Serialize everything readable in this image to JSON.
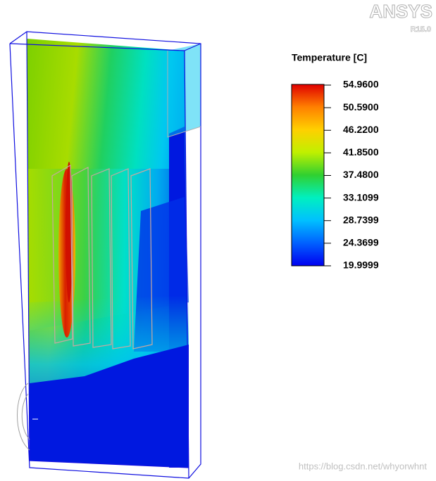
{
  "brand": {
    "name": "ANSYS",
    "version": "R15.0"
  },
  "legend": {
    "title": "Temperature [C]",
    "labels": [
      "54.9600",
      "50.5900",
      "46.2200",
      "41.8500",
      "37.4800",
      "33.1099",
      "28.7399",
      "24.3699",
      "19.9999"
    ]
  },
  "watermark": "https://blog.csdn.net/whyorwhnt"
}
